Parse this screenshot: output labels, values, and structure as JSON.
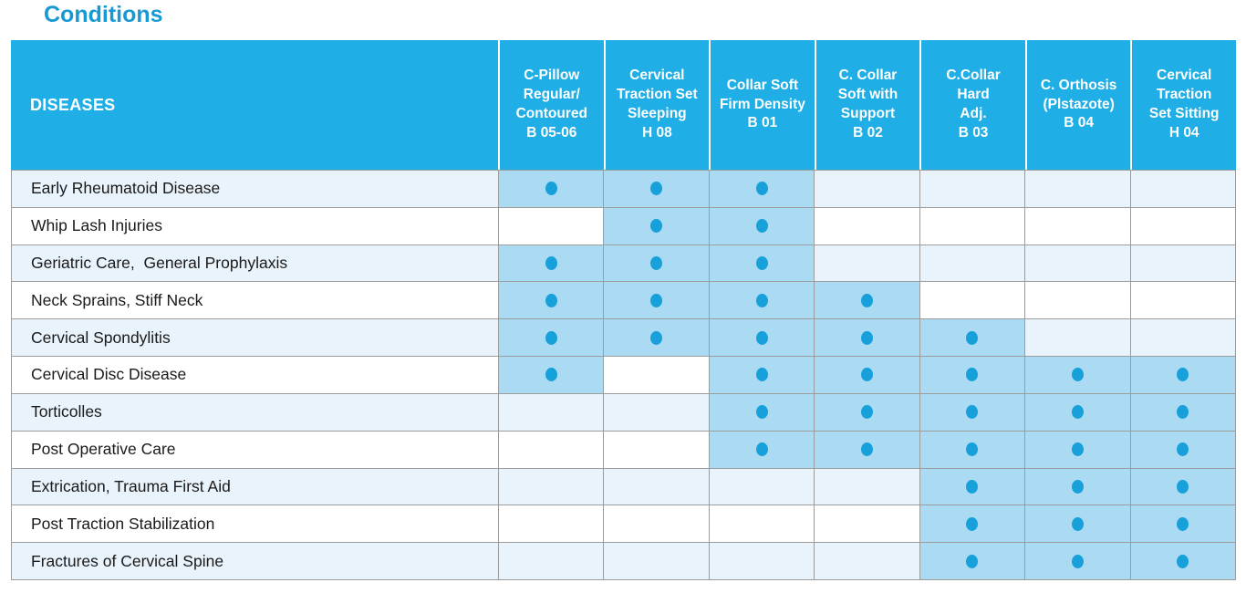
{
  "title": "Conditions",
  "colors": {
    "title": "#1899D3",
    "header_bg": "#1FAEE5",
    "dot": "#18A0DA",
    "marked_cell_bg": "#ABDBF3",
    "row_stripe_bg": "#E9F3FB",
    "row_white_bg": "#FFFFFF",
    "grid_border": "#9C9C9C"
  },
  "chart_data": {
    "type": "table",
    "title": "Conditions",
    "row_header": "DISEASES",
    "columns": [
      "C-Pillow Regular/ Contoured B 05-06",
      "Cervical Traction Set Sleeping H 08",
      "Collar Soft Firm Density B 01",
      "C. Collar Soft with Support B 02",
      "C.Collar Hard Adj. B 03",
      "C. Orthosis (Plstazote) B 04",
      "Cervical Traction Set Sitting H 04"
    ],
    "rows": [
      {
        "disease": "Early Rheumatoid Disease",
        "marks": [
          1,
          1,
          1,
          0,
          0,
          0,
          0
        ]
      },
      {
        "disease": "Whip Lash Injuries",
        "marks": [
          0,
          1,
          1,
          0,
          0,
          0,
          0
        ]
      },
      {
        "disease": "Geriatric Care,  General Prophylaxis",
        "marks": [
          1,
          1,
          1,
          0,
          0,
          0,
          0
        ]
      },
      {
        "disease": "Neck Sprains, Stiff Neck",
        "marks": [
          1,
          1,
          1,
          1,
          0,
          0,
          0
        ]
      },
      {
        "disease": "Cervical Spondylitis",
        "marks": [
          1,
          1,
          1,
          1,
          1,
          0,
          0
        ]
      },
      {
        "disease": "Cervical Disc Disease",
        "marks": [
          1,
          0,
          1,
          1,
          1,
          1,
          1
        ]
      },
      {
        "disease": "Torticolles",
        "marks": [
          0,
          0,
          1,
          1,
          1,
          1,
          1
        ]
      },
      {
        "disease": "Post Operative Care",
        "marks": [
          0,
          0,
          1,
          1,
          1,
          1,
          1
        ]
      },
      {
        "disease": "Extrication, Trauma First Aid",
        "marks": [
          0,
          0,
          0,
          0,
          1,
          1,
          1
        ]
      },
      {
        "disease": "Post Traction Stabilization",
        "marks": [
          0,
          0,
          0,
          0,
          1,
          1,
          1
        ]
      },
      {
        "disease": "Fractures of Cervical Spine",
        "marks": [
          0,
          0,
          0,
          0,
          1,
          1,
          1
        ]
      }
    ]
  },
  "table": {
    "diseases_header": "DISEASES",
    "product_columns": [
      {
        "label": "C-Pillow\nRegular/\nContoured\nB 05-06"
      },
      {
        "label": "Cervical\nTraction Set\nSleeping\nH 08"
      },
      {
        "label": "Collar Soft\nFirm Density\nB 01"
      },
      {
        "label": "C. Collar\nSoft with\nSupport\nB 02"
      },
      {
        "label": "C.Collar\nHard\nAdj.\nB 03"
      },
      {
        "label": "C. Orthosis\n(Plstazote)\nB 04"
      },
      {
        "label": "Cervical\nTraction\nSet Sitting\nH 04"
      }
    ]
  }
}
